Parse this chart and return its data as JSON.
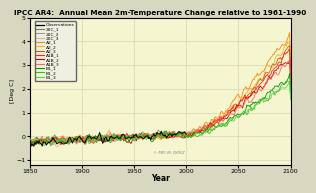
{
  "title": "IPCC AR4:  Annual Mean 2m-Temperature Change relative to 1961-1990",
  "xlabel": "Year",
  "ylabel": "[Deg C]",
  "xlim": [
    1850,
    2100
  ],
  "ylim": [
    -1.2,
    5.0
  ],
  "yticks": [
    -1,
    0,
    1,
    2,
    3,
    4,
    5
  ],
  "xticks": [
    1850,
    1900,
    1950,
    2000,
    2050,
    2100
  ],
  "background_color": "#f5f5d0",
  "outer_bg": "#d8d8c0",
  "grid_color": "#ccccaa",
  "obs_color": "#000000",
  "c20_colors": [
    "#777777",
    "#999999",
    "#bbbbbb"
  ],
  "a2_colors": [
    "#ff8800",
    "#ffaa33",
    "#cc6600"
  ],
  "a1b_colors": [
    "#ff2222",
    "#cc0000",
    "#ff6666"
  ],
  "b1_colors": [
    "#009900",
    "#33bb33",
    "#66cc44"
  ],
  "legend_entries": [
    "Observations",
    "20C_1",
    "20C_2",
    "20C_3",
    "A2_1",
    "A2_2",
    "A2_3",
    "A1B_1",
    "A1B_2",
    "A1B_3",
    "B1_1",
    "B1_2",
    "B1_3"
  ],
  "watermark": "© MPI-M, DKRZ"
}
